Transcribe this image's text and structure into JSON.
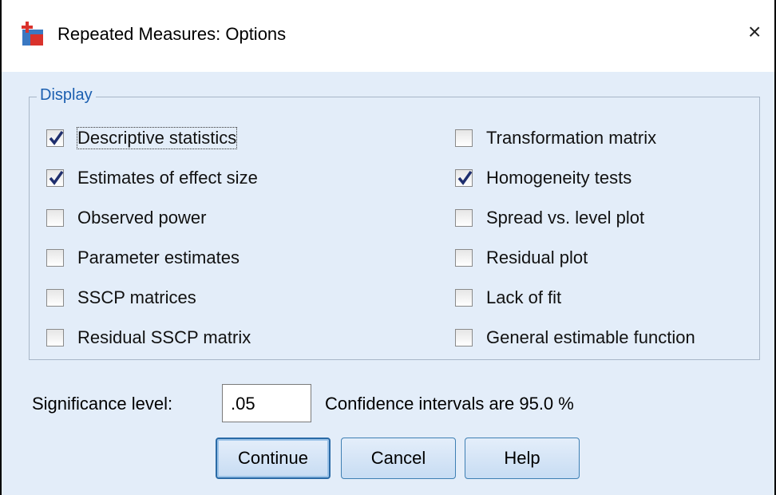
{
  "window": {
    "title": "Repeated Measures: Options",
    "close": "×"
  },
  "display": {
    "title": "Display",
    "left": [
      {
        "label": "Descriptive statistics",
        "checked": true
      },
      {
        "label": "Estimates of effect size",
        "checked": true
      },
      {
        "label": "Observed power",
        "checked": false
      },
      {
        "label": "Parameter estimates",
        "checked": false
      },
      {
        "label": "SSCP matrices",
        "checked": false
      },
      {
        "label": "Residual SSCP matrix",
        "checked": false
      }
    ],
    "right": [
      {
        "label": "Transformation matrix",
        "checked": false
      },
      {
        "label": "Homogeneity tests",
        "checked": true
      },
      {
        "label": "Spread vs. level plot",
        "checked": false
      },
      {
        "label": "Residual plot",
        "checked": false
      },
      {
        "label": "Lack of fit",
        "checked": false
      },
      {
        "label": "General estimable function",
        "checked": false
      }
    ]
  },
  "significance": {
    "label": "Significance level:",
    "value": ".05"
  },
  "confidence": "Confidence intervals are 95.0 %",
  "buttons": [
    "Continue",
    "Cancel",
    "Help"
  ]
}
